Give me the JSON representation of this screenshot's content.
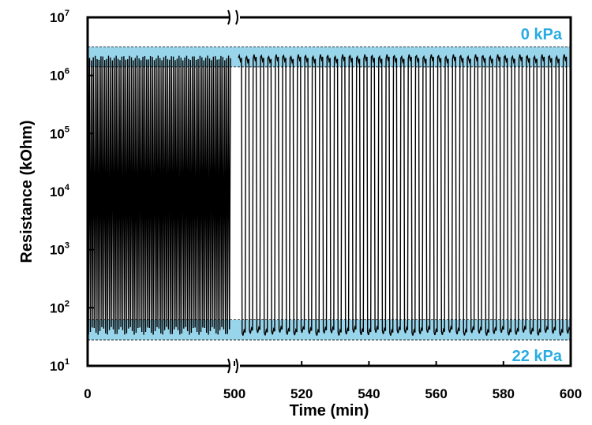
{
  "chart_data": {
    "type": "line",
    "title": "",
    "xlabel": "Time (min)",
    "ylabel": "Resistance (kOhm)",
    "y_scale": "log",
    "ylim": [
      10,
      10000000
    ],
    "x_axis_break_at": 500,
    "x_segments": [
      {
        "range": [
          0,
          500
        ],
        "ticks": [
          "0",
          "500"
        ]
      },
      {
        "range": [
          500,
          600
        ],
        "ticks": [
          "520",
          "540",
          "560",
          "580",
          "600"
        ]
      }
    ],
    "y_ticks": [
      {
        "base": "10",
        "exp": "1"
      },
      {
        "base": "10",
        "exp": "2"
      },
      {
        "base": "10",
        "exp": "3"
      },
      {
        "base": "10",
        "exp": "4"
      },
      {
        "base": "10",
        "exp": "5"
      },
      {
        "base": "10",
        "exp": "6"
      },
      {
        "base": "10",
        "exp": "7"
      }
    ],
    "bands": [
      {
        "label": "0 kPa",
        "y_range": [
          1400000,
          3100000
        ],
        "color": "#7ecbe6"
      },
      {
        "label": "22 kPa",
        "y_range": [
          28,
          62
        ],
        "color": "#7ecbe6"
      }
    ],
    "series": [
      {
        "color": "#000000",
        "high_value": 2000000,
        "low_value": 40,
        "segment_before_break": {
          "x_range": [
            0,
            500
          ],
          "cycles": 75
        },
        "segment_after_break": {
          "x_range": [
            500,
            600
          ],
          "cycles": 45
        }
      }
    ],
    "grid": false,
    "legend": "none"
  },
  "colors": {
    "band": "#7ecbe6",
    "band_text": "#29abe2",
    "signal": "#000000"
  }
}
